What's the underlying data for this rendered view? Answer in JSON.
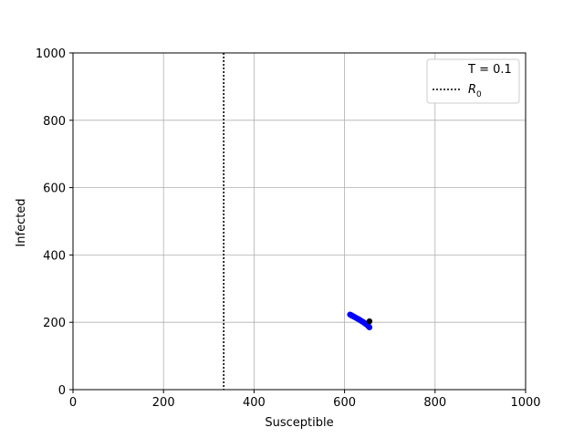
{
  "chart_data": {
    "type": "scatter",
    "xlabel": "Susceptible",
    "ylabel": "Infected",
    "xlim": [
      0,
      1000
    ],
    "ylim": [
      0,
      1000
    ],
    "xticks": [
      "0",
      "200",
      "400",
      "600",
      "800",
      "1000"
    ],
    "yticks": [
      "0",
      "200",
      "400",
      "600",
      "800",
      "1000"
    ],
    "grid": true,
    "legend_position": "top-right",
    "legend": {
      "time_label": "T = 0.1",
      "r0_label": "R",
      "r0_subscript": "0"
    },
    "r0_line_x": 333,
    "series": [
      {
        "color": "#0000ff",
        "points": [
          [
            612,
            223
          ],
          [
            614,
            222
          ],
          [
            616,
            220
          ],
          [
            618,
            219
          ],
          [
            620,
            217
          ],
          [
            622,
            216
          ],
          [
            624,
            214
          ],
          [
            626,
            213
          ],
          [
            628,
            211
          ],
          [
            630,
            210
          ],
          [
            632,
            208
          ],
          [
            634,
            207
          ],
          [
            636,
            205
          ],
          [
            638,
            203
          ],
          [
            640,
            202
          ],
          [
            642,
            200
          ],
          [
            644,
            198
          ],
          [
            646,
            196
          ],
          [
            648,
            194
          ],
          [
            650,
            192
          ],
          [
            652,
            189
          ],
          [
            654,
            187
          ],
          [
            655,
            185
          ]
        ]
      },
      {
        "color": "#000000",
        "points": [
          [
            655,
            203
          ]
        ]
      }
    ]
  }
}
